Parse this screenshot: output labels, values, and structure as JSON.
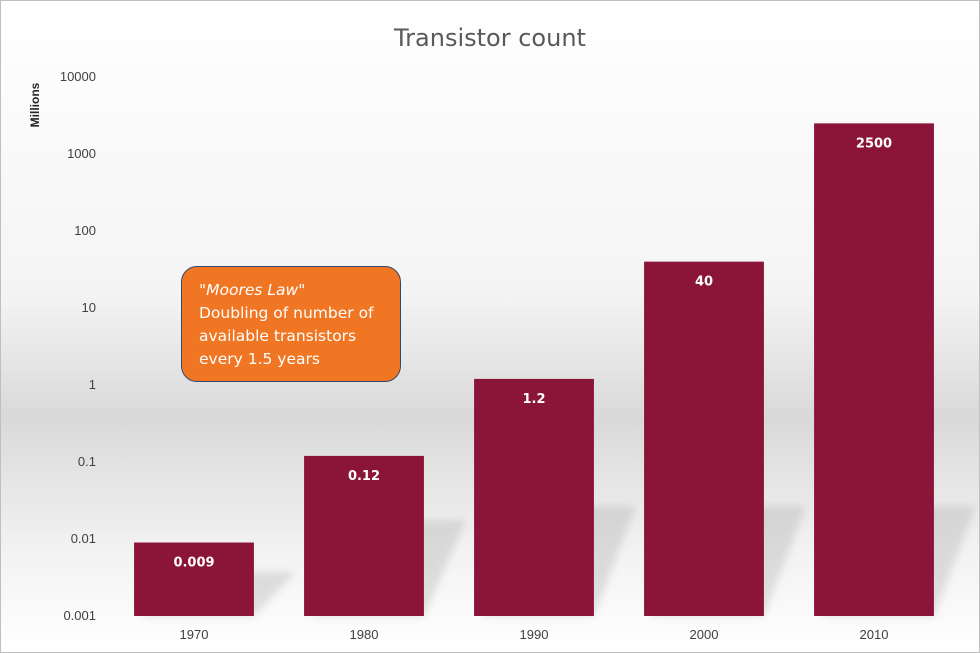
{
  "chart_data": {
    "type": "bar",
    "title": "Transistor count",
    "xlabel": "",
    "ylabel": "Millions",
    "yscale": "log",
    "ylim": [
      0.001,
      10000
    ],
    "y_ticks": [
      "0.001",
      "0.01",
      "0.1",
      "1",
      "10",
      "100",
      "1000",
      "10000"
    ],
    "categories": [
      "1970",
      "1980",
      "1990",
      "2000",
      "2010"
    ],
    "values": [
      0.009,
      0.12,
      1.2,
      40,
      2500
    ],
    "data_labels": [
      "0.009",
      "0.12",
      "1.2",
      "40",
      "2500"
    ],
    "bar_color": "#8b1538",
    "grid": false,
    "legend": "none"
  },
  "callout": {
    "quote_open": "\"",
    "emphasis": "Moores Law",
    "quote_close": "\"",
    "lines": [
      "Doubling of number of",
      "available transistors",
      "every 1.5 years"
    ],
    "fill": "#f07623",
    "border": "#2f4a6b"
  }
}
